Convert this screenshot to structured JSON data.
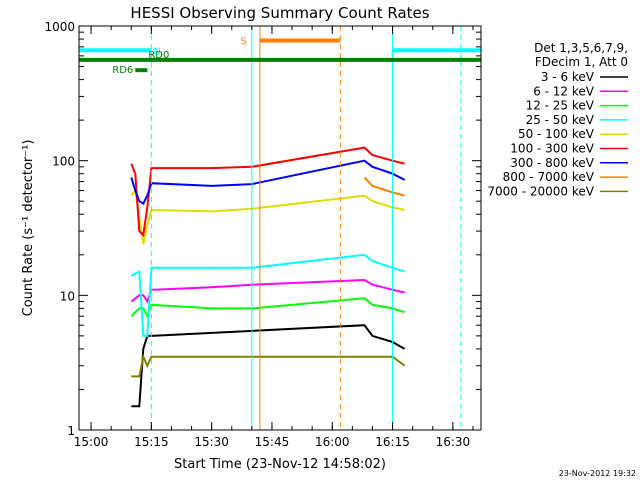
{
  "chart_data": {
    "type": "line",
    "title": "HESSI Observing Summary Count Rates",
    "xlabel": "Start Time (23-Nov-12 14:58:02)",
    "ylabel": "Count Rate (s⁻¹ detector⁻¹)",
    "y_scale": "log",
    "ylim": [
      1,
      1000
    ],
    "xlim": [
      "14:57",
      "16:37"
    ],
    "x_ticks": [
      "15:00",
      "15:15",
      "15:30",
      "15:45",
      "16:00",
      "16:15",
      "16:30"
    ],
    "y_ticks": [
      "1",
      "10",
      "100",
      "1000"
    ],
    "footer": "23-Nov-2012 19:32",
    "legend": {
      "placement": "right",
      "header": [
        "Det 1,3,5,6,7,9,",
        "FDecim 1, Att 0"
      ]
    },
    "series": [
      {
        "name": "3 - 6 keV",
        "color": "#000000",
        "x": [
          "15:10",
          "15:12",
          "15:13",
          "15:14",
          "15:15",
          "16:08",
          "16:10",
          "16:15",
          "16:18"
        ],
        "y": [
          1.5,
          1.5,
          4,
          5,
          5,
          6,
          5,
          4.5,
          4
        ]
      },
      {
        "name": "6 - 12 keV",
        "color": "#ff00ff",
        "x": [
          "15:10",
          "15:12",
          "15:13",
          "15:14",
          "15:15",
          "15:30",
          "15:40",
          "16:08",
          "16:10",
          "16:15",
          "16:18"
        ],
        "y": [
          9,
          10,
          10,
          9,
          11,
          11.5,
          12,
          13,
          12,
          11,
          10.5
        ]
      },
      {
        "name": "12 - 25 keV",
        "color": "#00ff00",
        "x": [
          "15:10",
          "15:12",
          "15:13",
          "15:14",
          "15:15",
          "15:30",
          "15:40",
          "16:08",
          "16:10",
          "16:15",
          "16:18"
        ],
        "y": [
          7,
          8,
          8,
          7,
          8.5,
          8,
          8,
          9.5,
          8.5,
          8,
          7.5
        ]
      },
      {
        "name": "25 - 50 keV",
        "color": "#00ffff",
        "x": [
          "15:10",
          "15:12",
          "15:13",
          "15:14",
          "15:15",
          "15:30",
          "15:40",
          "16:08",
          "16:10",
          "16:15",
          "16:18"
        ],
        "y": [
          14,
          15,
          5,
          5,
          16,
          16,
          16,
          20,
          18,
          16,
          15
        ]
      },
      {
        "name": "50 - 100 keV",
        "color": "#dddd00",
        "x": [
          "15:10",
          "15:11",
          "15:13",
          "15:14",
          "15:15",
          "15:30",
          "15:40",
          "16:08",
          "16:10",
          "16:15",
          "16:18"
        ],
        "y": [
          55,
          60,
          24,
          33,
          43,
          42,
          44,
          55,
          50,
          45,
          43
        ]
      },
      {
        "name": "100 - 300 keV",
        "color": "#ff0000",
        "x": [
          "15:10",
          "15:11",
          "15:12",
          "15:13",
          "15:14",
          "15:15",
          "15:30",
          "15:40",
          "16:08",
          "16:10",
          "16:15",
          "16:18"
        ],
        "y": [
          95,
          80,
          30,
          28,
          45,
          88,
          88,
          90,
          125,
          110,
          100,
          95
        ]
      },
      {
        "name": "300 - 800 keV",
        "color": "#0000ff",
        "x": [
          "15:10",
          "15:11",
          "15:12",
          "15:13",
          "15:14",
          "15:15",
          "15:30",
          "15:40",
          "16:08",
          "16:10",
          "16:15",
          "16:18"
        ],
        "y": [
          75,
          60,
          50,
          48,
          55,
          68,
          65,
          67,
          100,
          90,
          80,
          72
        ]
      },
      {
        "name": "800 - 7000 keV",
        "color": "#ff8000",
        "x": [
          "16:08",
          "16:10",
          "16:15",
          "16:18"
        ],
        "y": [
          75,
          65,
          58,
          55
        ]
      },
      {
        "name": "7000 - 20000 keV",
        "color": "#808000",
        "x": [
          "15:10",
          "15:12",
          "15:13",
          "15:14",
          "15:15",
          "15:30",
          "15:40",
          "16:08",
          "16:10",
          "16:15",
          "16:18"
        ],
        "y": [
          2.5,
          2.5,
          3.5,
          3,
          3.5,
          3.5,
          3.5,
          3.5,
          3.5,
          3.5,
          3
        ]
      }
    ],
    "flag_bars": [
      {
        "label": "N",
        "color": "#00ffff",
        "segments": [
          [
            "14:57",
            "15:15"
          ],
          [
            "16:15",
            "16:37"
          ]
        ],
        "y": 660
      },
      {
        "label": "S",
        "color": "#ff8000",
        "segments": [
          [
            "15:42",
            "16:02"
          ]
        ],
        "y": 780
      },
      {
        "label": "RD0",
        "color": "#008000",
        "segments": [
          [
            "14:57",
            "16:37"
          ]
        ],
        "y": 560
      },
      {
        "label": "RD6",
        "color": "#008000",
        "segments": [
          [
            "15:11",
            "15:14"
          ]
        ],
        "y": 470
      }
    ],
    "vlines": [
      {
        "x": "15:15",
        "color": "#00ffff",
        "style": "dashed"
      },
      {
        "x": "15:40",
        "color": "#00ffff",
        "style": "solid"
      },
      {
        "x": "15:42",
        "color": "#ff8000",
        "style": "solid"
      },
      {
        "x": "16:02",
        "color": "#ff8000",
        "style": "dashed"
      },
      {
        "x": "16:15",
        "color": "#00ffff",
        "style": "solid"
      },
      {
        "x": "16:32",
        "color": "#00ffff",
        "style": "dashed"
      }
    ]
  }
}
